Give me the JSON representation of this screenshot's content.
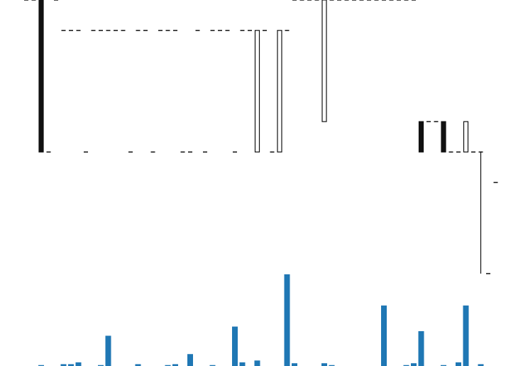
{
  "chart_data": {
    "type": "candlestick",
    "open": [
      5,
      5,
      5,
      0,
      5,
      4,
      4,
      4,
      0,
      4,
      4,
      4,
      4,
      4,
      0,
      4,
      4,
      0,
      4,
      4,
      4,
      0,
      0,
      4,
      0,
      4,
      4,
      4,
      0,
      4,
      4,
      0,
      4,
      0,
      0,
      4,
      5,
      5,
      5,
      5,
      1,
      5,
      5,
      5,
      5,
      5,
      5,
      5,
      5,
      5,
      5,
      5,
      5,
      1,
      1,
      1,
      1,
      0,
      0,
      0,
      0,
      0,
      -4,
      -1
    ],
    "high": [
      5,
      5,
      5,
      0,
      5,
      4,
      4,
      4,
      0,
      4,
      4,
      4,
      4,
      4,
      0,
      4,
      4,
      0,
      4,
      4,
      4,
      0,
      0,
      4,
      0,
      4,
      4,
      4,
      0,
      4,
      4,
      4,
      4,
      0,
      4,
      4,
      5,
      5,
      5,
      5,
      5,
      5,
      5,
      5,
      5,
      5,
      5,
      5,
      5,
      5,
      5,
      5,
      5,
      1,
      1,
      1,
      1,
      0,
      0,
      1,
      0,
      0,
      -4,
      -1
    ],
    "low": [
      5,
      5,
      0,
      0,
      5,
      4,
      4,
      4,
      0,
      4,
      4,
      4,
      4,
      4,
      0,
      4,
      4,
      0,
      4,
      4,
      4,
      0,
      0,
      4,
      0,
      4,
      4,
      4,
      0,
      4,
      4,
      0,
      4,
      0,
      0,
      4,
      5,
      5,
      5,
      5,
      1,
      5,
      5,
      5,
      5,
      5,
      5,
      5,
      5,
      5,
      5,
      5,
      5,
      0,
      1,
      1,
      0,
      0,
      0,
      0,
      0,
      -4,
      -4,
      -1
    ],
    "close": [
      5,
      5,
      0,
      0,
      5,
      4,
      4,
      4,
      0,
      4,
      4,
      4,
      4,
      4,
      0,
      4,
      4,
      0,
      4,
      4,
      4,
      0,
      0,
      4,
      0,
      4,
      4,
      4,
      0,
      4,
      4,
      4,
      4,
      0,
      4,
      4,
      5,
      5,
      5,
      5,
      5,
      5,
      5,
      5,
      5,
      5,
      5,
      5,
      5,
      5,
      5,
      5,
      5,
      0,
      1,
      1,
      0,
      0,
      0,
      1,
      0,
      0,
      -4,
      -1
    ],
    "volume": [
      0,
      0,
      0.1,
      0,
      0,
      0.2,
      0.2,
      0.4,
      0,
      0,
      0.1,
      3.3,
      0,
      0,
      0,
      0.2,
      0,
      0,
      0,
      0.1,
      0.2,
      0,
      1.3,
      0,
      0,
      0.1,
      0,
      0,
      4.3,
      0.4,
      0,
      0.6,
      0,
      0,
      0,
      10,
      0.3,
      0,
      0,
      0,
      0.3,
      0.1,
      0,
      0,
      0,
      0,
      0,
      0,
      6.6,
      0,
      0,
      0.1,
      0.3,
      3.8,
      0,
      0,
      0.1,
      0,
      0.4,
      6.6,
      0,
      0.2,
      0,
      0
    ],
    "ylim": [
      -4,
      5
    ],
    "volume_ylim": [
      0,
      10
    ],
    "up_color": "#ffffff",
    "down_color": "#111111",
    "edge_color": "#111111",
    "volume_color": "#1f77b4"
  }
}
